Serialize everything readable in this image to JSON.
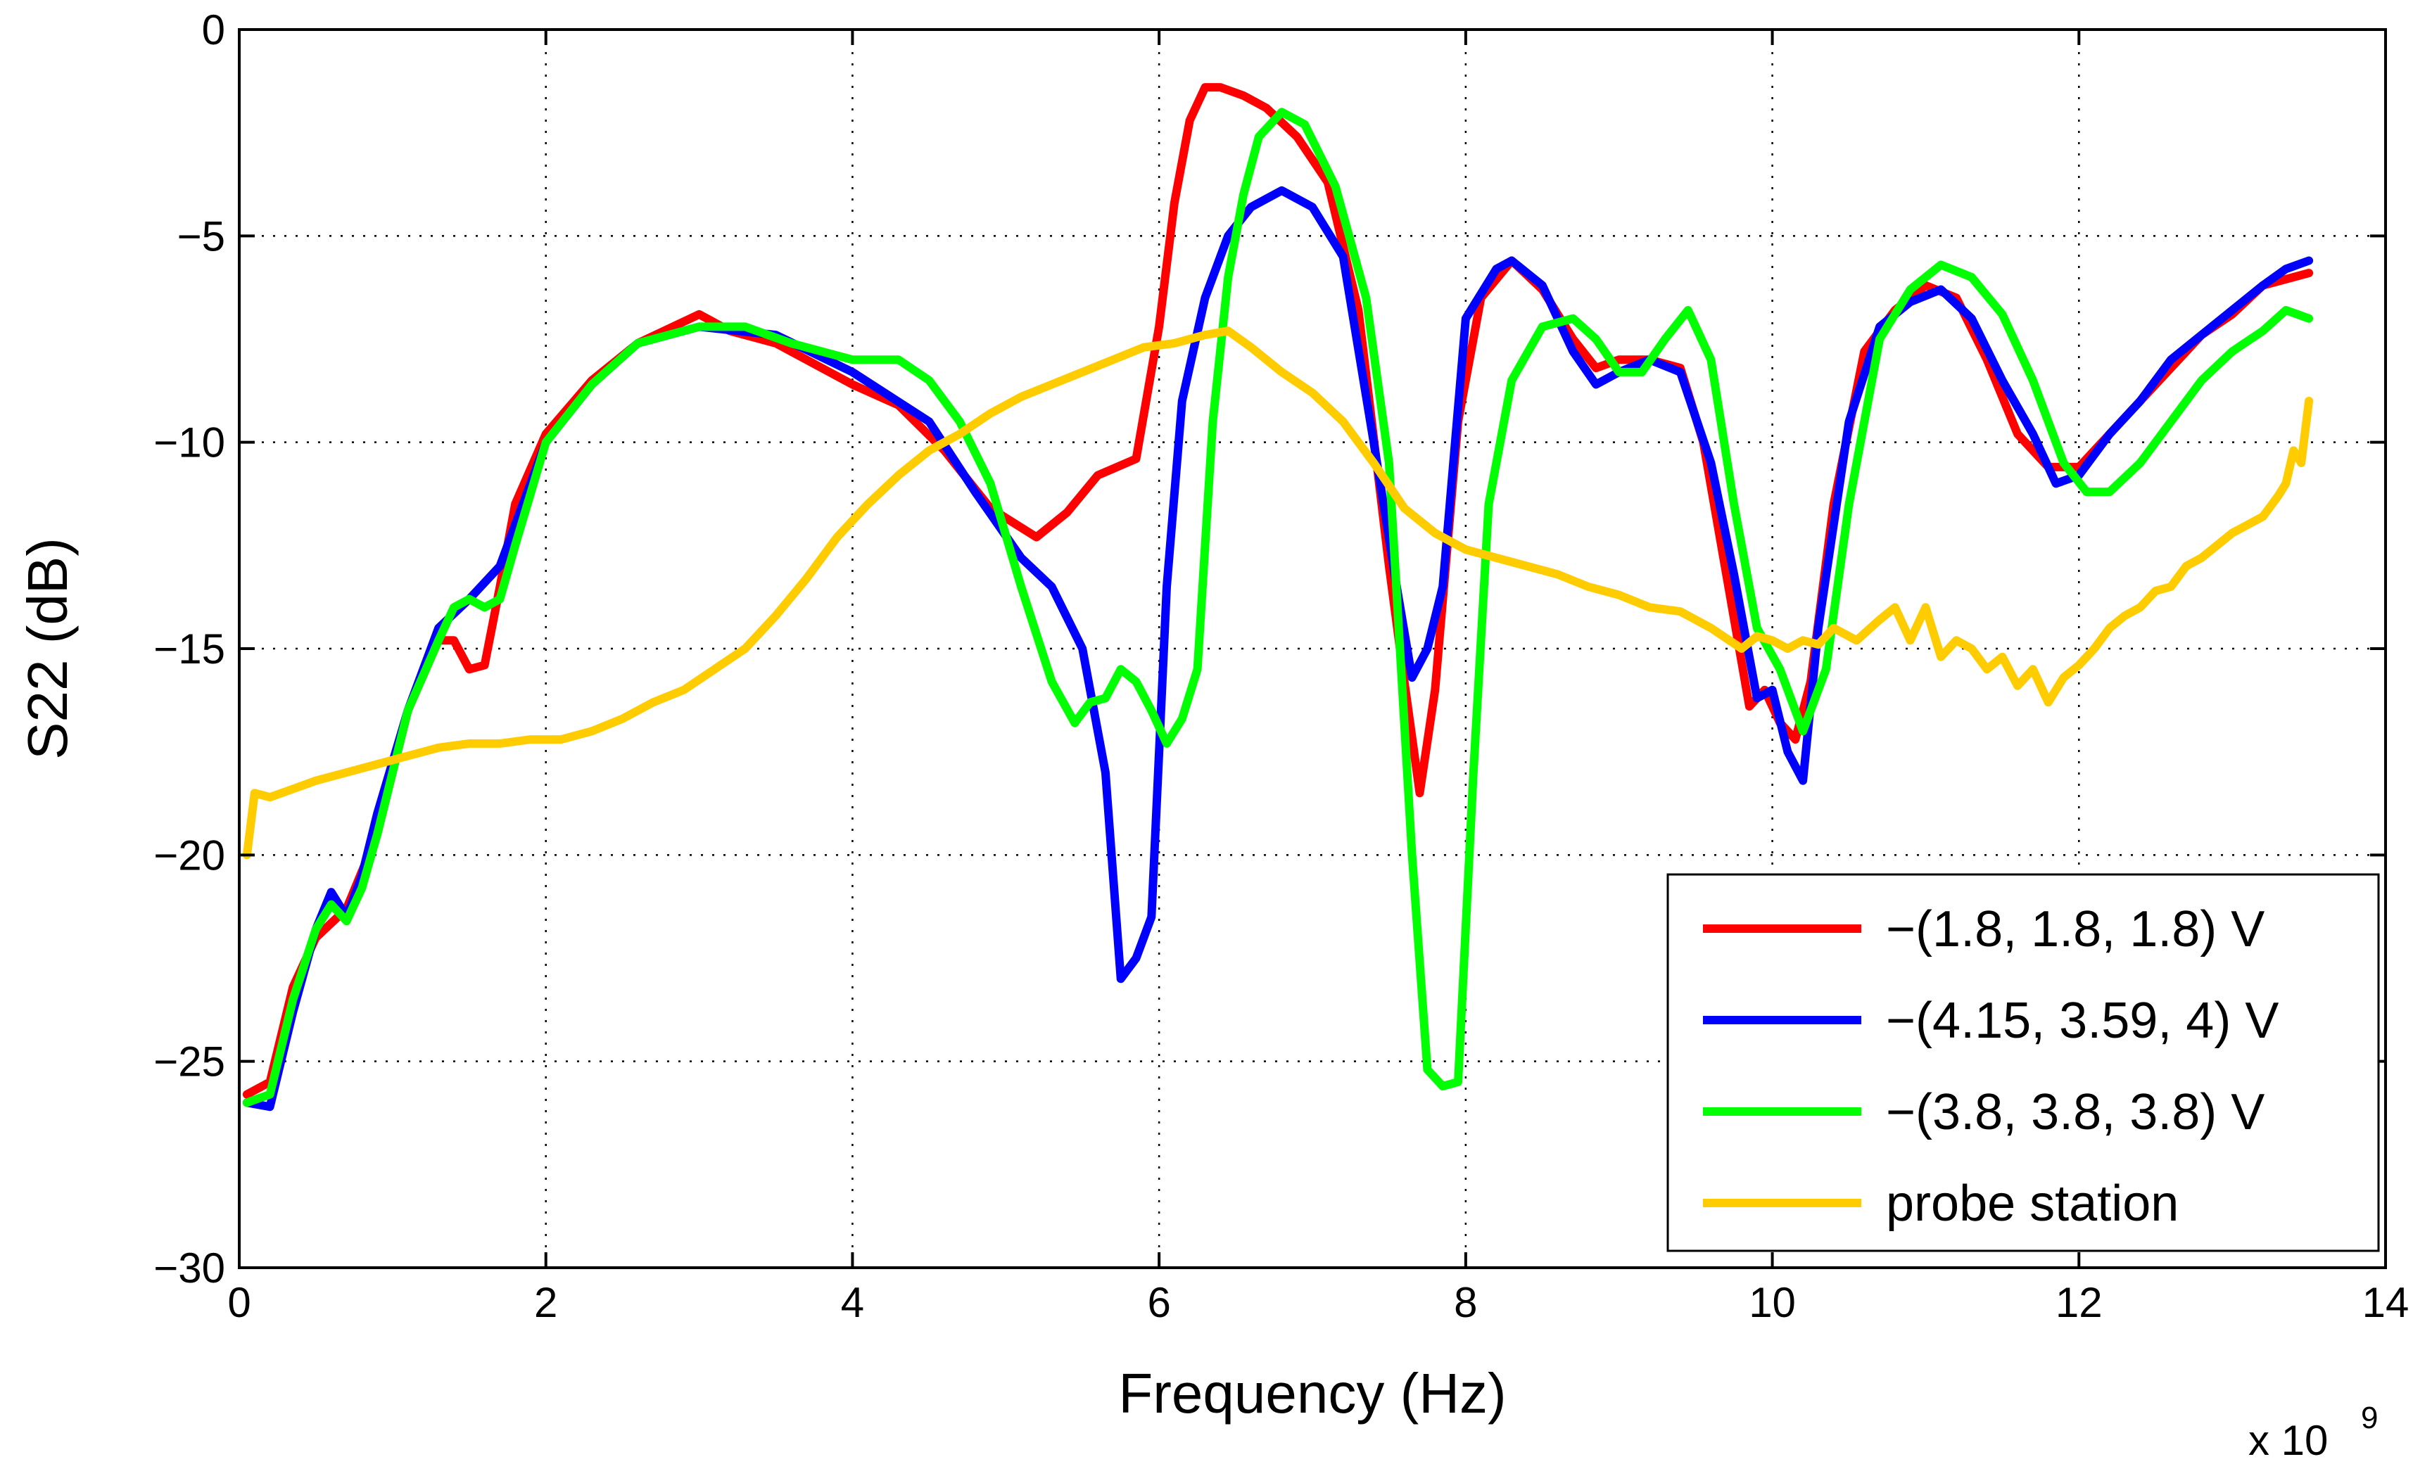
{
  "chart_data": {
    "type": "line",
    "title": "",
    "xlabel": "Frequency (Hz)",
    "ylabel": "S22 (dB)",
    "x_scale_label": "x 10",
    "x_scale_exponent": "9",
    "xlim": [
      0,
      14
    ],
    "ylim": [
      -30,
      0
    ],
    "x_ticks": [
      0,
      2,
      4,
      6,
      8,
      10,
      12,
      14
    ],
    "x_tick_labels": [
      "0",
      "2",
      "4",
      "6",
      "8",
      "10",
      "12",
      "14"
    ],
    "y_ticks": [
      0,
      -5,
      -10,
      -15,
      -20,
      -25,
      -30
    ],
    "y_tick_labels": [
      "0",
      "−5",
      "−10",
      "−15",
      "−20",
      "−25",
      "−30"
    ],
    "grid": true,
    "legend_position": "bottom-right",
    "series": [
      {
        "name": "−(1.8, 1.8, 1.8) V",
        "color": "#ff0000",
        "x": [
          0.05,
          0.2,
          0.35,
          0.5,
          0.7,
          0.9,
          1.1,
          1.3,
          1.4,
          1.5,
          1.6,
          1.7,
          1.8,
          2.0,
          2.3,
          2.6,
          3.0,
          3.2,
          3.5,
          3.8,
          4.0,
          4.3,
          4.6,
          4.9,
          5.2,
          5.4,
          5.6,
          5.85,
          6.0,
          6.1,
          6.2,
          6.3,
          6.4,
          6.55,
          6.7,
          6.9,
          7.1,
          7.3,
          7.5,
          7.6,
          7.7,
          7.8,
          7.95,
          8.1,
          8.3,
          8.5,
          8.7,
          8.85,
          9.0,
          9.2,
          9.4,
          9.55,
          9.7,
          9.85,
          9.95,
          10.05,
          10.15,
          10.25,
          10.4,
          10.6,
          10.8,
          11.0,
          11.2,
          11.4,
          11.6,
          11.8,
          12.0,
          12.2,
          12.4,
          12.6,
          12.8,
          13.0,
          13.2,
          13.5
        ],
        "y": [
          -25.8,
          -25.5,
          -23.2,
          -22.0,
          -21.3,
          -19.5,
          -16.5,
          -14.8,
          -14.8,
          -15.5,
          -15.4,
          -13.5,
          -11.5,
          -9.8,
          -8.5,
          -7.6,
          -6.9,
          -7.3,
          -7.6,
          -8.2,
          -8.6,
          -9.1,
          -10.2,
          -11.6,
          -12.3,
          -11.7,
          -10.8,
          -10.4,
          -7.2,
          -4.2,
          -2.2,
          -1.4,
          -1.4,
          -1.6,
          -1.9,
          -2.6,
          -3.7,
          -6.8,
          -13.0,
          -15.8,
          -18.5,
          -16.0,
          -9.5,
          -6.5,
          -5.6,
          -6.3,
          -7.5,
          -8.2,
          -8.0,
          -8.0,
          -8.2,
          -10.0,
          -13.2,
          -16.4,
          -16.0,
          -16.8,
          -17.2,
          -15.8,
          -11.5,
          -7.8,
          -6.8,
          -6.2,
          -6.5,
          -8.0,
          -9.8,
          -10.6,
          -10.6,
          -9.8,
          -9.0,
          -8.2,
          -7.4,
          -6.9,
          -6.2,
          -5.9
        ]
      },
      {
        "name": "−(4.15, 3.59, 4) V",
        "color": "#0000ff",
        "x": [
          0.05,
          0.2,
          0.35,
          0.5,
          0.6,
          0.7,
          0.8,
          0.9,
          1.1,
          1.3,
          1.5,
          1.7,
          1.8,
          2.0,
          2.3,
          2.6,
          3.0,
          3.5,
          4.0,
          4.5,
          4.8,
          5.1,
          5.3,
          5.5,
          5.65,
          5.75,
          5.85,
          5.95,
          6.05,
          6.15,
          6.3,
          6.45,
          6.6,
          6.8,
          7.0,
          7.2,
          7.4,
          7.55,
          7.65,
          7.75,
          7.85,
          8.0,
          8.2,
          8.3,
          8.5,
          8.7,
          8.85,
          9.0,
          9.2,
          9.4,
          9.6,
          9.75,
          9.9,
          10.0,
          10.1,
          10.2,
          10.3,
          10.5,
          10.7,
          10.9,
          11.1,
          11.3,
          11.5,
          11.7,
          11.85,
          12.0,
          12.2,
          12.4,
          12.6,
          12.8,
          13.0,
          13.2,
          13.35,
          13.5
        ],
        "y": [
          -26.0,
          -26.1,
          -23.8,
          -21.8,
          -20.9,
          -21.5,
          -20.5,
          -19.0,
          -16.5,
          -14.5,
          -13.8,
          -13.0,
          -12.0,
          -10.0,
          -8.6,
          -7.6,
          -7.2,
          -7.4,
          -8.3,
          -9.5,
          -11.2,
          -12.8,
          -13.5,
          -15.0,
          -18.0,
          -23.0,
          -22.5,
          -21.5,
          -13.5,
          -9.0,
          -6.5,
          -5.0,
          -4.3,
          -3.9,
          -4.3,
          -5.5,
          -10.0,
          -13.5,
          -15.7,
          -15.0,
          -13.5,
          -7.0,
          -5.8,
          -5.6,
          -6.2,
          -7.8,
          -8.6,
          -8.3,
          -8.0,
          -8.3,
          -10.5,
          -13.2,
          -16.2,
          -16.0,
          -17.5,
          -18.2,
          -14.5,
          -9.5,
          -7.2,
          -6.6,
          -6.3,
          -7.0,
          -8.5,
          -9.8,
          -11.0,
          -10.8,
          -9.8,
          -9.0,
          -8.0,
          -7.4,
          -6.8,
          -6.2,
          -5.8,
          -5.6
        ]
      },
      {
        "name": "−(3.8, 3.8, 3.8) V",
        "color": "#00ff00",
        "x": [
          0.05,
          0.2,
          0.35,
          0.5,
          0.6,
          0.7,
          0.8,
          0.9,
          1.1,
          1.3,
          1.4,
          1.5,
          1.6,
          1.7,
          1.8,
          2.0,
          2.3,
          2.6,
          3.0,
          3.3,
          3.6,
          4.0,
          4.3,
          4.5,
          4.7,
          4.9,
          5.1,
          5.3,
          5.45,
          5.55,
          5.65,
          5.75,
          5.85,
          5.95,
          6.05,
          6.15,
          6.25,
          6.35,
          6.45,
          6.55,
          6.65,
          6.8,
          6.95,
          7.15,
          7.35,
          7.5,
          7.65,
          7.75,
          7.85,
          7.95,
          8.05,
          8.15,
          8.3,
          8.5,
          8.7,
          8.85,
          9.0,
          9.15,
          9.3,
          9.45,
          9.6,
          9.75,
          9.9,
          10.05,
          10.2,
          10.35,
          10.5,
          10.7,
          10.9,
          11.1,
          11.3,
          11.5,
          11.7,
          11.9,
          12.05,
          12.2,
          12.4,
          12.6,
          12.8,
          13.0,
          13.2,
          13.35,
          13.5
        ],
        "y": [
          -26.0,
          -25.8,
          -23.5,
          -21.8,
          -21.2,
          -21.6,
          -20.8,
          -19.5,
          -16.5,
          -14.8,
          -14.0,
          -13.8,
          -14.0,
          -13.8,
          -12.5,
          -10.0,
          -8.6,
          -7.6,
          -7.2,
          -7.2,
          -7.6,
          -8.0,
          -8.0,
          -8.5,
          -9.5,
          -11.0,
          -13.5,
          -15.8,
          -16.8,
          -16.3,
          -16.2,
          -15.5,
          -15.8,
          -16.5,
          -17.3,
          -16.7,
          -15.5,
          -9.5,
          -6.0,
          -4.0,
          -2.6,
          -2.0,
          -2.3,
          -3.8,
          -6.5,
          -10.5,
          -20.0,
          -25.2,
          -25.6,
          -25.5,
          -18.0,
          -11.5,
          -8.5,
          -7.2,
          -7.0,
          -7.5,
          -8.3,
          -8.3,
          -7.5,
          -6.8,
          -8.0,
          -11.5,
          -14.5,
          -15.5,
          -17.0,
          -15.5,
          -11.5,
          -7.5,
          -6.3,
          -5.7,
          -6.0,
          -6.9,
          -8.5,
          -10.5,
          -11.2,
          -11.2,
          -10.5,
          -9.5,
          -8.5,
          -7.8,
          -7.3,
          -6.8,
          -7.0
        ]
      },
      {
        "name": "probe station",
        "color": "#ffcc00",
        "x": [
          0.05,
          0.1,
          0.2,
          0.35,
          0.5,
          0.7,
          0.9,
          1.1,
          1.3,
          1.5,
          1.7,
          1.9,
          2.1,
          2.3,
          2.5,
          2.7,
          2.9,
          3.1,
          3.3,
          3.5,
          3.7,
          3.9,
          4.1,
          4.3,
          4.5,
          4.7,
          4.9,
          5.1,
          5.3,
          5.5,
          5.7,
          5.9,
          6.1,
          6.3,
          6.45,
          6.6,
          6.8,
          7.0,
          7.2,
          7.4,
          7.6,
          7.8,
          8.0,
          8.2,
          8.4,
          8.6,
          8.8,
          9.0,
          9.2,
          9.4,
          9.6,
          9.8,
          9.9,
          10.0,
          10.1,
          10.2,
          10.3,
          10.4,
          10.55,
          10.7,
          10.8,
          10.9,
          11.0,
          11.1,
          11.2,
          11.3,
          11.4,
          11.5,
          11.6,
          11.7,
          11.8,
          11.9,
          12.0,
          12.1,
          12.2,
          12.3,
          12.4,
          12.5,
          12.6,
          12.7,
          12.8,
          12.9,
          13.0,
          13.1,
          13.2,
          13.3,
          13.35,
          13.4,
          13.45,
          13.5
        ],
        "y": [
          -20.0,
          -18.5,
          -18.6,
          -18.4,
          -18.2,
          -18.0,
          -17.8,
          -17.6,
          -17.4,
          -17.3,
          -17.3,
          -17.2,
          -17.2,
          -17.0,
          -16.7,
          -16.3,
          -16.0,
          -15.5,
          -15.0,
          -14.2,
          -13.3,
          -12.3,
          -11.5,
          -10.8,
          -10.2,
          -9.8,
          -9.3,
          -8.9,
          -8.6,
          -8.3,
          -8.0,
          -7.7,
          -7.6,
          -7.4,
          -7.3,
          -7.7,
          -8.3,
          -8.8,
          -9.5,
          -10.5,
          -11.6,
          -12.2,
          -12.6,
          -12.8,
          -13.0,
          -13.2,
          -13.5,
          -13.7,
          -14.0,
          -14.1,
          -14.5,
          -15.0,
          -14.7,
          -14.8,
          -15.0,
          -14.8,
          -14.9,
          -14.5,
          -14.8,
          -14.3,
          -14.0,
          -14.8,
          -14.0,
          -15.2,
          -14.8,
          -15.0,
          -15.5,
          -15.2,
          -15.9,
          -15.5,
          -16.3,
          -15.7,
          -15.4,
          -15.0,
          -14.5,
          -14.2,
          -14.0,
          -13.6,
          -13.5,
          -13.0,
          -12.8,
          -12.5,
          -12.2,
          -12.0,
          -11.8,
          -11.3,
          -11.0,
          -10.2,
          -10.5,
          -9.0
        ]
      }
    ]
  }
}
